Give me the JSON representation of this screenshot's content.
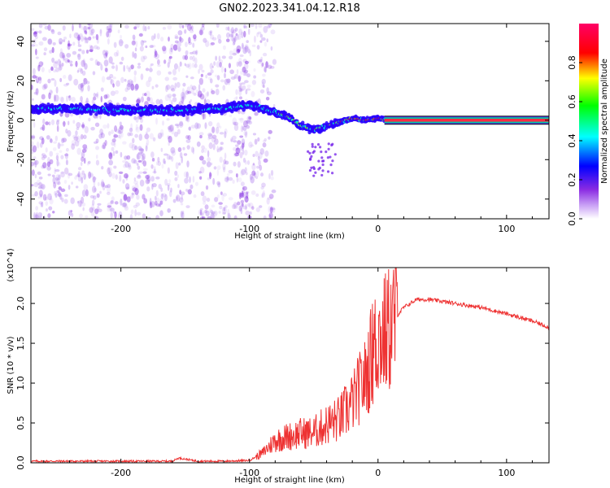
{
  "title": "GN02.2023.341.04.12.R18",
  "chart_data": [
    {
      "type": "heatmap",
      "xlabel": "Height of straight line (km)",
      "ylabel": "Frequency (Hz)",
      "xlim": [
        -270,
        133
      ],
      "ylim": [
        -50,
        49
      ],
      "x_ticks": [
        -200,
        -100,
        0,
        100
      ],
      "y_ticks": [
        -40,
        -20,
        0,
        20,
        40
      ],
      "colorbar": {
        "label": "Normalized spectral amplitude",
        "range": [
          0.0,
          1.0
        ],
        "ticks": [
          0.0,
          0.2,
          0.4,
          0.6,
          0.8
        ],
        "colormap": [
          "#ffffff",
          "#8a2be2",
          "#0000ff",
          "#00ffff",
          "#00ff00",
          "#ffff00",
          "#ff0000",
          "#ff0066"
        ]
      },
      "ridge": [
        {
          "x": -270,
          "y": 6
        },
        {
          "x": -240,
          "y": 6
        },
        {
          "x": -200,
          "y": 5
        },
        {
          "x": -160,
          "y": 5
        },
        {
          "x": -120,
          "y": 6
        },
        {
          "x": -100,
          "y": 8
        },
        {
          "x": -90,
          "y": 6
        },
        {
          "x": -80,
          "y": 4
        },
        {
          "x": -70,
          "y": 2
        },
        {
          "x": -60,
          "y": -3
        },
        {
          "x": -50,
          "y": -5
        },
        {
          "x": -40,
          "y": -3
        },
        {
          "x": -30,
          "y": -1
        },
        {
          "x": -20,
          "y": 1
        },
        {
          "x": -10,
          "y": 0
        },
        {
          "x": 0,
          "y": 1
        },
        {
          "x": 10,
          "y": 0
        },
        {
          "x": 133,
          "y": 0
        }
      ],
      "constant_line": {
        "x_start": 5,
        "x_end": 133,
        "y": 0
      }
    },
    {
      "type": "line",
      "xlabel": "Height of straight line (km)",
      "ylabel": "SNR (10 * v/v)",
      "multiplier": "(x10^4)",
      "xlim": [
        -270,
        133
      ],
      "ylim": [
        0.0,
        2.45
      ],
      "x_ticks": [
        -200,
        -100,
        0,
        100
      ],
      "y_ticks": [
        0.0,
        0.5,
        1.0,
        1.5,
        2.0
      ],
      "color": "#ee3333",
      "series": [
        {
          "x": [
            -270,
            -240,
            -200,
            -160,
            -155,
            -140,
            -120,
            -100,
            -90,
            -80,
            -70,
            -60,
            -50,
            -40,
            -30,
            -20,
            -15,
            -10,
            -5,
            0,
            5,
            10,
            15,
            20,
            30,
            40,
            60,
            80,
            100,
            120,
            133
          ],
          "y": [
            0.02,
            0.02,
            0.02,
            0.02,
            0.06,
            0.02,
            0.02,
            0.03,
            0.12,
            0.28,
            0.33,
            0.37,
            0.38,
            0.48,
            0.55,
            0.75,
            0.92,
            1.05,
            1.35,
            1.55,
            1.6,
            1.7,
            1.85,
            1.95,
            2.05,
            2.05,
            2.0,
            1.95,
            1.87,
            1.78,
            1.7
          ]
        }
      ]
    }
  ]
}
